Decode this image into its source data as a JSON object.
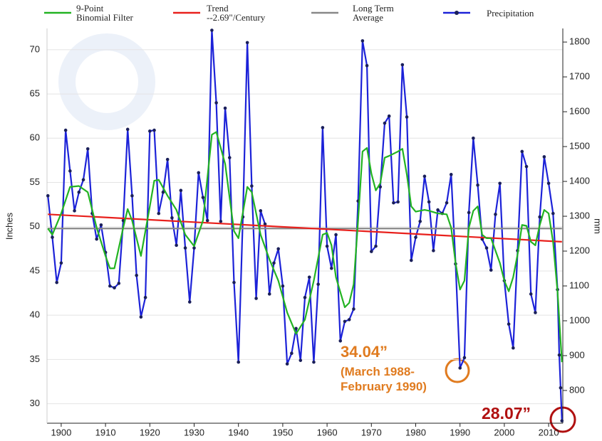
{
  "chart_data": {
    "type": "line",
    "ylabel": "Inches",
    "y2label": "mm",
    "xlim": [
      1896.8,
      2013.2
    ],
    "xticks": [
      1900,
      1910,
      1920,
      1930,
      1940,
      1950,
      1960,
      1970,
      1980,
      1990,
      2000,
      2010
    ],
    "ylim": [
      27.8,
      72.4
    ],
    "yticks": [
      30,
      35,
      40,
      45,
      50,
      55,
      60,
      65,
      70
    ],
    "y2lim": [
      706,
      1839
    ],
    "y2ticks": [
      800,
      900,
      1000,
      1100,
      1200,
      1300,
      1400,
      1500,
      1600,
      1700,
      1800
    ],
    "grid": true,
    "series": [
      {
        "name": "9-Point\nBinomial Filter",
        "color": "#22b322",
        "x": [
          1897,
          1898,
          1900,
          1902,
          1904,
          1906,
          1908,
          1910,
          1911,
          1912,
          1914,
          1915,
          1916,
          1918,
          1920,
          1921,
          1922,
          1924,
          1926,
          1928,
          1930,
          1932,
          1934,
          1935,
          1937,
          1939,
          1940,
          1942,
          1943,
          1945,
          1947,
          1949,
          1951,
          1953,
          1955,
          1957,
          1959,
          1960,
          1961,
          1962,
          1964,
          1965,
          1966,
          1967,
          1968,
          1969,
          1970,
          1971,
          1972,
          1973,
          1974,
          1976,
          1977,
          1978,
          1979,
          1980,
          1982,
          1983,
          1985,
          1987,
          1988,
          1989,
          1990,
          1991,
          1992,
          1993,
          1994,
          1995,
          1996,
          1997,
          1998,
          1999,
          2000,
          2001,
          2002,
          2003,
          2004,
          2005,
          2006,
          2007,
          2008,
          2009,
          2010,
          2011,
          2012,
          2013
        ],
        "values": [
          49.8,
          49.1,
          51.5,
          54.5,
          54.6,
          53.9,
          49.9,
          46.7,
          45.3,
          45.3,
          49.9,
          52.0,
          50.7,
          46.7,
          52.3,
          55.2,
          55.3,
          53.5,
          51.9,
          49.1,
          47.8,
          50.7,
          60.4,
          60.7,
          57.1,
          49.5,
          48.7,
          54.5,
          53.9,
          49.1,
          46.3,
          43.9,
          40.3,
          37.9,
          39.5,
          43.9,
          49.1,
          49.3,
          47.9,
          44.3,
          40.9,
          41.4,
          43.5,
          50.7,
          58.5,
          58.9,
          56.0,
          54.1,
          54.9,
          57.8,
          58.0,
          58.5,
          58.8,
          55.9,
          52.3,
          51.7,
          51.9,
          51.8,
          51.5,
          51.4,
          49.9,
          45.9,
          42.9,
          43.9,
          49.9,
          51.8,
          52.3,
          49.1,
          48.7,
          48.7,
          47.3,
          45.9,
          43.9,
          42.7,
          44.3,
          46.9,
          50.2,
          50.1,
          48.3,
          47.9,
          50.2,
          51.9,
          51.5,
          48.3,
          42.7,
          34.7
        ]
      },
      {
        "name": "Trend\n--2.69\"/Century",
        "color": "#e8201c",
        "x": [
          1897,
          2013
        ],
        "values": [
          51.4,
          48.3
        ]
      },
      {
        "name": "Long Term\nAverage",
        "color": "#888888",
        "x": [
          1897,
          2013
        ],
        "values": [
          49.8,
          49.8
        ]
      },
      {
        "name": "Precipitation",
        "color": "#1c22d8",
        "marker": true,
        "marker_color": "#1a1f5a",
        "x": [
          1897,
          1898,
          1899,
          1900,
          1901,
          1902,
          1903,
          1904,
          1905,
          1906,
          1907,
          1908,
          1909,
          1910,
          1911,
          1912,
          1913,
          1914,
          1915,
          1916,
          1917,
          1918,
          1919,
          1920,
          1921,
          1922,
          1923,
          1924,
          1925,
          1926,
          1927,
          1928,
          1929,
          1930,
          1931,
          1932,
          1933,
          1934,
          1935,
          1936,
          1937,
          1938,
          1939,
          1940,
          1941,
          1942,
          1943,
          1944,
          1945,
          1946,
          1947,
          1948,
          1949,
          1950,
          1951,
          1952,
          1953,
          1954,
          1955,
          1956,
          1957,
          1958,
          1959,
          1960,
          1961,
          1962,
          1963,
          1964,
          1965,
          1966,
          1967,
          1968,
          1969,
          1970,
          1971,
          1972,
          1973,
          1974,
          1975,
          1976,
          1977,
          1978,
          1979,
          1980,
          1981,
          1982,
          1983,
          1984,
          1985,
          1986,
          1987,
          1988,
          1989,
          1990,
          1991,
          1992,
          1993,
          1994,
          1995,
          1996,
          1997,
          1998,
          1999,
          2000,
          2001,
          2002,
          2003,
          2004,
          2005,
          2006,
          2007,
          2008,
          2009,
          2010,
          2011,
          2012,
          2012.4,
          2012.7,
          2013
        ],
        "values": [
          53.5,
          48.8,
          43.7,
          45.9,
          60.9,
          56.3,
          51.8,
          53.9,
          55.3,
          58.8,
          51.5,
          48.6,
          50.2,
          47.1,
          43.3,
          43.1,
          43.6,
          50.7,
          61.0,
          53.5,
          44.5,
          39.8,
          42.0,
          60.8,
          60.9,
          51.5,
          53.9,
          57.6,
          51.0,
          47.9,
          54.1,
          47.6,
          41.5,
          47.6,
          56.1,
          53.3,
          50.7,
          72.2,
          64.0,
          50.6,
          63.4,
          57.8,
          43.7,
          34.7,
          51.1,
          70.8,
          54.6,
          41.9,
          51.8,
          50.3,
          42.4,
          45.9,
          47.5,
          43.3,
          34.5,
          35.7,
          38.5,
          34.9,
          42.0,
          44.3,
          34.7,
          43.5,
          61.2,
          47.8,
          45.3,
          49.1,
          37.1,
          39.3,
          39.5,
          40.7,
          52.9,
          71.0,
          68.2,
          47.2,
          47.8,
          54.5,
          61.7,
          62.5,
          52.7,
          52.8,
          68.3,
          62.4,
          46.2,
          48.8,
          50.6,
          55.7,
          52.8,
          47.3,
          51.9,
          51.5,
          52.7,
          55.9,
          45.8,
          34.04,
          35.2,
          51.6,
          60.0,
          54.7,
          48.6,
          47.6,
          45.1,
          51.4,
          54.9,
          43.9,
          39.0,
          36.3,
          47.3,
          58.5,
          56.8,
          42.4,
          40.3,
          51.1,
          57.9,
          54.9,
          51.5,
          42.9,
          35.5,
          31.8,
          28.07
        ]
      }
    ],
    "annotations": [
      {
        "text": "34.04”",
        "color": "#e07b1f"
      },
      {
        "text": "(March 1988-\nFebruary 1990)",
        "color": "#e07b1f"
      },
      {
        "text": "28.07”",
        "color": "#b01010"
      }
    ]
  }
}
